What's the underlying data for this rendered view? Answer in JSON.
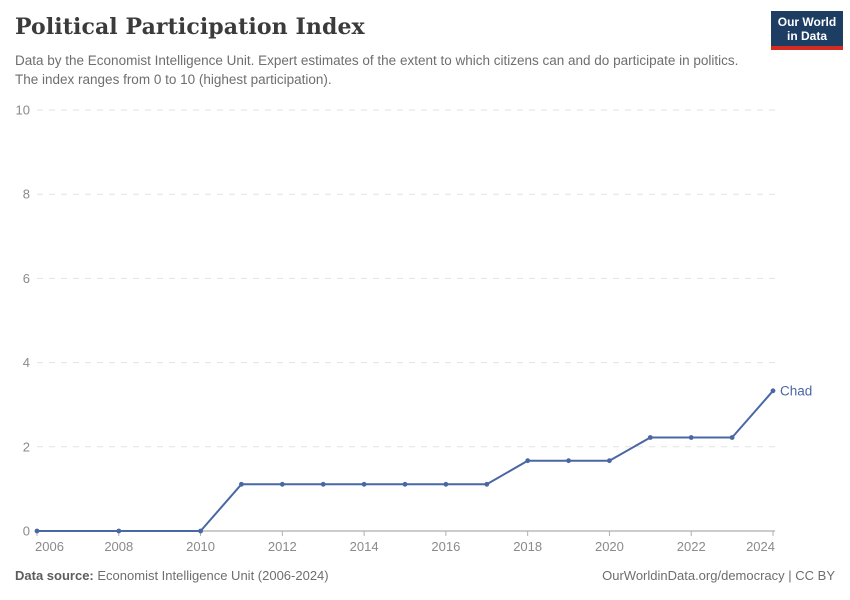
{
  "header": {
    "title": "Political Participation Index",
    "subtitle": "Data by the Economist Intelligence Unit. Expert estimates of the extent to which citizens can and do participate in politics. The index ranges from 0 to 10 (highest participation).",
    "logo": {
      "line1": "Our World",
      "line2": "in Data"
    }
  },
  "chart_data": {
    "type": "line",
    "title": "Political Participation Index",
    "xlabel": "",
    "ylabel": "",
    "xlim": [
      2006,
      2024
    ],
    "ylim": [
      0,
      10
    ],
    "xticks": [
      2006,
      2008,
      2010,
      2012,
      2014,
      2016,
      2018,
      2020,
      2022,
      2024
    ],
    "yticks": [
      0,
      2,
      4,
      6,
      8,
      10
    ],
    "grid": "horizontal-dashed",
    "legend": "inline-end-label",
    "series": [
      {
        "name": "Chad",
        "points": [
          [
            2006,
            0
          ],
          [
            2008,
            0
          ],
          [
            2010,
            0
          ],
          [
            2011,
            1.11
          ],
          [
            2012,
            1.11
          ],
          [
            2013,
            1.11
          ],
          [
            2014,
            1.11
          ],
          [
            2015,
            1.11
          ],
          [
            2016,
            1.11
          ],
          [
            2017,
            1.11
          ],
          [
            2018,
            1.67
          ],
          [
            2019,
            1.67
          ],
          [
            2020,
            1.67
          ],
          [
            2021,
            2.22
          ],
          [
            2022,
            2.22
          ],
          [
            2023,
            2.22
          ],
          [
            2024,
            3.33
          ]
        ]
      }
    ]
  },
  "footer": {
    "source_label": "Data source:",
    "source_value": "Economist Intelligence Unit (2006-2024)",
    "credit": "OurWorldinData.org/democracy | CC BY"
  },
  "colors": {
    "line": "#4a67a5",
    "grid": "#e2e2e2",
    "axis": "#9a9a9a",
    "tick": "#b0b0b0",
    "tick_label": "#8a8a8a",
    "entity_label": "#4a67a5",
    "logo_bg": "#1d3d63",
    "logo_accent": "#d42b21"
  }
}
